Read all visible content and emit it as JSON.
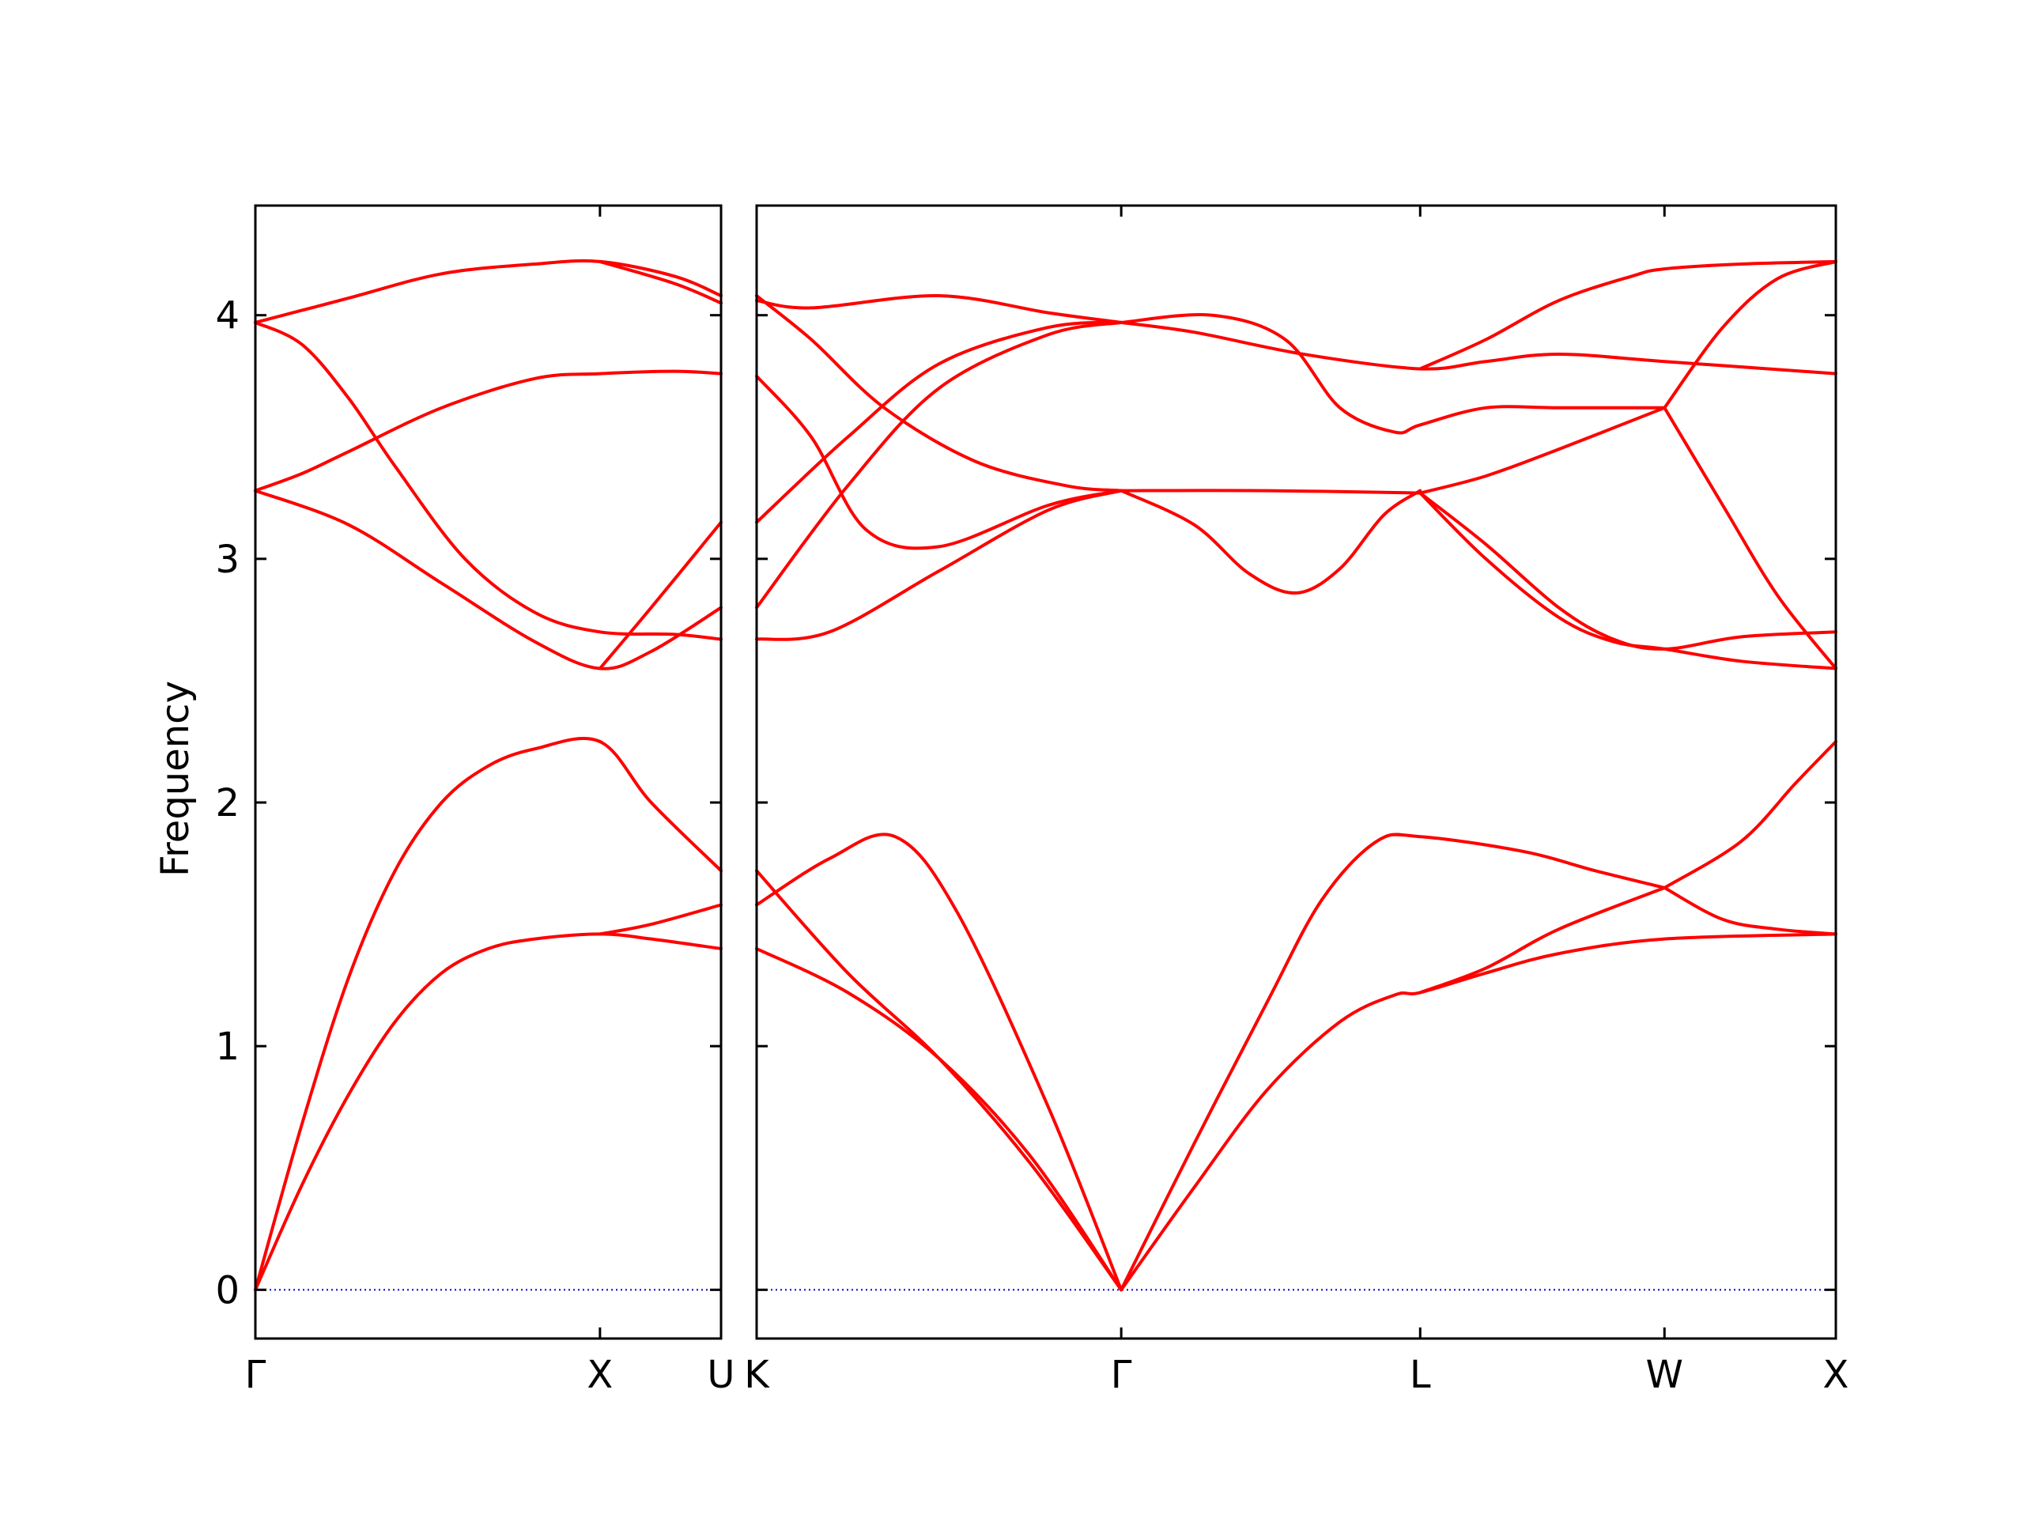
{
  "chart_data": {
    "type": "line",
    "ylabel": "Frequency",
    "ylim": [
      -0.2,
      4.45
    ],
    "yticks": [
      0,
      1,
      2,
      3,
      4
    ],
    "series_color": "#ff0000",
    "zero_line_color": "#0000cc",
    "panels": [
      {
        "xticks": [
          {
            "label": "Γ",
            "x": 0
          },
          {
            "label": "X",
            "x": 0.74
          },
          {
            "label": "U",
            "x": 1.0
          }
        ],
        "bands": [
          [
            [
              0,
              0
            ],
            [
              0.1,
              0.43
            ],
            [
              0.2,
              0.8
            ],
            [
              0.3,
              1.1
            ],
            [
              0.4,
              1.3
            ],
            [
              0.5,
              1.4
            ],
            [
              0.6,
              1.44
            ],
            [
              0.74,
              1.46
            ],
            [
              0.85,
              1.44
            ],
            [
              1.0,
              1.4
            ]
          ],
          [
            [
              0,
              0
            ],
            [
              0.1,
              0.68
            ],
            [
              0.2,
              1.28
            ],
            [
              0.3,
              1.72
            ],
            [
              0.4,
              2.0
            ],
            [
              0.5,
              2.15
            ],
            [
              0.6,
              2.22
            ],
            [
              0.74,
              2.25
            ],
            [
              0.85,
              2.0
            ],
            [
              1.0,
              1.72
            ]
          ],
          [
            [
              0,
              3.28
            ],
            [
              0.2,
              3.14
            ],
            [
              0.4,
              2.9
            ],
            [
              0.6,
              2.66
            ],
            [
              0.74,
              2.55
            ],
            [
              0.85,
              2.62
            ],
            [
              1.0,
              2.8
            ]
          ],
          [
            [
              0,
              3.28
            ],
            [
              0.1,
              3.35
            ],
            [
              0.2,
              3.44
            ],
            [
              0.4,
              3.62
            ],
            [
              0.6,
              3.74
            ],
            [
              0.74,
              3.76
            ],
            [
              0.9,
              3.77
            ],
            [
              1.0,
              3.76
            ]
          ],
          [
            [
              0,
              3.97
            ],
            [
              0.1,
              3.88
            ],
            [
              0.2,
              3.66
            ],
            [
              0.3,
              3.38
            ],
            [
              0.45,
              3.0
            ],
            [
              0.6,
              2.78
            ],
            [
              0.74,
              2.7
            ],
            [
              0.9,
              2.69
            ],
            [
              1.0,
              2.67
            ]
          ],
          [
            [
              0,
              3.97
            ],
            [
              0.2,
              4.07
            ],
            [
              0.4,
              4.17
            ],
            [
              0.6,
              4.21
            ],
            [
              0.74,
              4.22
            ],
            [
              0.9,
              4.16
            ],
            [
              1.0,
              4.08
            ]
          ],
          [
            [
              0.74,
              1.46
            ],
            [
              0.85,
              1.5
            ],
            [
              1.0,
              1.58
            ]
          ],
          [
            [
              0.74,
              2.55
            ],
            [
              0.85,
              2.8
            ],
            [
              1.0,
              3.15
            ]
          ],
          [
            [
              0.74,
              4.22
            ],
            [
              0.9,
              4.13
            ],
            [
              1.0,
              4.05
            ]
          ]
        ]
      },
      {
        "xticks": [
          {
            "label": "K",
            "x": 0
          },
          {
            "label": "Γ",
            "x": 1.0
          },
          {
            "label": "L",
            "x": 1.82
          },
          {
            "label": "W",
            "x": 2.49
          },
          {
            "label": "X",
            "x": 2.96
          }
        ],
        "bands": [
          [
            [
              0,
              1.4
            ],
            [
              0.25,
              1.22
            ],
            [
              0.5,
              0.95
            ],
            [
              0.75,
              0.55
            ],
            [
              1.0,
              0
            ]
          ],
          [
            [
              0,
              1.72
            ],
            [
              0.25,
              1.3
            ],
            [
              0.5,
              0.95
            ],
            [
              0.75,
              0.52
            ],
            [
              1.0,
              0
            ]
          ],
          [
            [
              0,
              1.58
            ],
            [
              0.2,
              1.77
            ],
            [
              0.38,
              1.86
            ],
            [
              0.55,
              1.55
            ],
            [
              0.8,
              0.75
            ],
            [
              1.0,
              0
            ]
          ],
          [
            [
              0,
              2.67
            ],
            [
              0.2,
              2.7
            ],
            [
              0.5,
              2.95
            ],
            [
              0.8,
              3.2
            ],
            [
              1.0,
              3.28
            ]
          ],
          [
            [
              0,
              3.75
            ],
            [
              0.15,
              3.5
            ],
            [
              0.3,
              3.12
            ],
            [
              0.5,
              3.05
            ],
            [
              0.8,
              3.22
            ],
            [
              1.0,
              3.28
            ]
          ],
          [
            [
              0,
              2.8
            ],
            [
              0.25,
              3.3
            ],
            [
              0.5,
              3.7
            ],
            [
              0.8,
              3.92
            ],
            [
              1.0,
              3.97
            ]
          ],
          [
            [
              0,
              3.15
            ],
            [
              0.25,
              3.5
            ],
            [
              0.5,
              3.8
            ],
            [
              0.8,
              3.95
            ],
            [
              1.0,
              3.97
            ]
          ],
          [
            [
              0,
              4.08
            ],
            [
              0.15,
              3.9
            ],
            [
              0.35,
              3.62
            ],
            [
              0.6,
              3.4
            ],
            [
              0.85,
              3.3
            ],
            [
              1.0,
              3.28
            ]
          ],
          [
            [
              0,
              4.06
            ],
            [
              0.15,
              4.03
            ],
            [
              0.5,
              4.08
            ],
            [
              0.8,
              4.01
            ],
            [
              1.0,
              3.97
            ]
          ],
          [
            [
              1.0,
              3.28
            ],
            [
              1.2,
              3.14
            ],
            [
              1.35,
              2.94
            ],
            [
              1.48,
              2.86
            ],
            [
              1.6,
              2.96
            ],
            [
              1.72,
              3.18
            ],
            [
              1.82,
              3.28
            ]
          ],
          [
            [
              1.0,
              3.28
            ],
            [
              1.4,
              3.28
            ],
            [
              1.82,
              3.27
            ]
          ],
          [
            [
              1.0,
              0
            ],
            [
              1.2,
              0.6
            ],
            [
              1.4,
              1.18
            ],
            [
              1.55,
              1.6
            ],
            [
              1.7,
              1.84
            ],
            [
              1.82,
              1.86
            ],
            [
              2.1,
              1.8
            ],
            [
              2.3,
              1.72
            ],
            [
              2.49,
              1.65
            ]
          ],
          [
            [
              1.0,
              0
            ],
            [
              1.2,
              0.42
            ],
            [
              1.4,
              0.82
            ],
            [
              1.6,
              1.1
            ],
            [
              1.75,
              1.21
            ],
            [
              1.82,
              1.22
            ],
            [
              2.0,
              1.3
            ],
            [
              2.2,
              1.38
            ],
            [
              2.49,
              1.44
            ],
            [
              2.96,
              1.46
            ]
          ],
          [
            [
              1.82,
              1.22
            ],
            [
              2.0,
              1.32
            ],
            [
              2.2,
              1.48
            ],
            [
              2.49,
              1.65
            ]
          ],
          [
            [
              1.0,
              3.97
            ],
            [
              1.25,
              4.0
            ],
            [
              1.45,
              3.9
            ],
            [
              1.6,
              3.62
            ],
            [
              1.75,
              3.52
            ],
            [
              1.82,
              3.55
            ],
            [
              2.0,
              3.62
            ],
            [
              2.2,
              3.62
            ],
            [
              2.49,
              3.62
            ]
          ],
          [
            [
              1.0,
              3.97
            ],
            [
              1.2,
              3.93
            ],
            [
              1.5,
              3.84
            ],
            [
              1.82,
              3.78
            ],
            [
              2.0,
              3.81
            ],
            [
              2.2,
              3.84
            ],
            [
              2.49,
              3.81
            ],
            [
              2.96,
              3.76
            ]
          ],
          [
            [
              1.82,
              3.27
            ],
            [
              2.0,
              3.34
            ],
            [
              2.2,
              3.45
            ],
            [
              2.49,
              3.62
            ]
          ],
          [
            [
              1.82,
              3.27
            ],
            [
              2.0,
              3.06
            ],
            [
              2.2,
              2.8
            ],
            [
              2.35,
              2.67
            ],
            [
              2.49,
              2.63
            ],
            [
              2.7,
              2.68
            ],
            [
              2.96,
              2.7
            ]
          ],
          [
            [
              1.82,
              3.27
            ],
            [
              2.0,
              3.0
            ],
            [
              2.2,
              2.76
            ],
            [
              2.35,
              2.66
            ],
            [
              2.49,
              2.63
            ],
            [
              2.7,
              2.58
            ],
            [
              2.96,
              2.55
            ]
          ],
          [
            [
              1.82,
              3.78
            ],
            [
              2.0,
              3.9
            ],
            [
              2.2,
              4.06
            ],
            [
              2.4,
              4.16
            ],
            [
              2.49,
              4.19
            ],
            [
              2.7,
              4.21
            ],
            [
              2.96,
              4.22
            ]
          ],
          [
            [
              2.49,
              1.65
            ],
            [
              2.65,
              1.52
            ],
            [
              2.8,
              1.48
            ],
            [
              2.96,
              1.46
            ]
          ],
          [
            [
              2.49,
              1.65
            ],
            [
              2.7,
              1.84
            ],
            [
              2.85,
              2.08
            ],
            [
              2.96,
              2.25
            ]
          ],
          [
            [
              2.49,
              3.62
            ],
            [
              2.65,
              3.22
            ],
            [
              2.8,
              2.85
            ],
            [
              2.96,
              2.55
            ]
          ],
          [
            [
              2.49,
              3.62
            ],
            [
              2.65,
              3.95
            ],
            [
              2.8,
              4.15
            ],
            [
              2.96,
              4.22
            ]
          ]
        ]
      }
    ]
  }
}
